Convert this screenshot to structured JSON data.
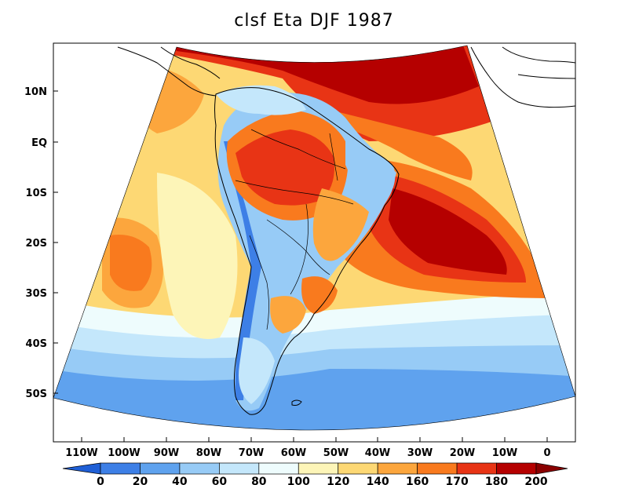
{
  "title": "clsf Eta DJF 1987",
  "map": {
    "region": "South America and adjacent Atlantic/Pacific oceans",
    "projection": "conic",
    "lat_labels": [
      "10N",
      "EQ",
      "10S",
      "20S",
      "30S",
      "40S",
      "50S"
    ],
    "lon_labels": [
      "110W",
      "100W",
      "90W",
      "80W",
      "70W",
      "60W",
      "50W",
      "40W",
      "30W",
      "20W",
      "10W",
      "0"
    ]
  },
  "colorbar": {
    "levels": [
      "0",
      "20",
      "40",
      "60",
      "80",
      "100",
      "120",
      "140",
      "160",
      "170",
      "180",
      "200"
    ],
    "colors": [
      "#1f5fd6",
      "#3d7fe6",
      "#5fa2ee",
      "#97cbf6",
      "#c4e7fb",
      "#eefcfd",
      "#fdf5b8",
      "#fdd874",
      "#fca63d",
      "#f97a1e",
      "#e83415",
      "#b50000",
      "#8a0000"
    ]
  },
  "palette": {
    "blue_deep": "#1f5fd6",
    "blue": "#3d7fe6",
    "blue_mid": "#5fa2ee",
    "blue_light": "#97cbf6",
    "cyan_light": "#c4e7fb",
    "white_blue": "#eefcfd",
    "yellow_light": "#fdf5b8",
    "yellow": "#fdd874",
    "orange_light": "#fca63d",
    "orange": "#f97a1e",
    "red": "#e83415",
    "dark_red": "#b50000"
  }
}
